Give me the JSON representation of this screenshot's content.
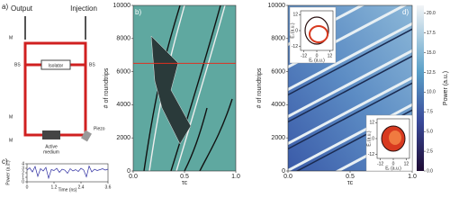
{
  "panel_a": {
    "label": "a)",
    "output": "Output",
    "injection": "Injection",
    "bs_left": "BS",
    "bs_right": "BS",
    "isolator": "Isolator",
    "mirror_top": "M",
    "mirror_left": "M",
    "mirror_bottom": "M",
    "active_medium": [
      "Active",
      "medium"
    ],
    "piezo": "Piezo"
  },
  "chart_data": [
    {
      "type": "line",
      "label": "c)",
      "y_label": "Power (a.u.)",
      "x_label": "Time (ns)",
      "x": [
        0,
        0.12,
        0.24,
        0.36,
        0.48,
        0.6,
        0.72,
        0.84,
        0.96,
        1.08,
        1.2,
        1.32,
        1.44,
        1.56,
        1.68,
        1.8,
        1.92,
        2.04,
        2.16,
        2.28,
        2.4,
        2.52,
        2.64,
        2.76,
        2.88,
        3.0,
        3.12,
        3.24,
        3.36,
        3.48,
        3.6
      ],
      "values": [
        2.6,
        3.1,
        2.2,
        3.4,
        1.2,
        2.9,
        2.4,
        3.2,
        0.8,
        2.7,
        2.5,
        3.0,
        2.1,
        2.8,
        2.6,
        1.9,
        2.9,
        2.4,
        2.7,
        2.3,
        3.0,
        2.6,
        1.1,
        3.5,
        2.2,
        2.8,
        2.5,
        2.7,
        2.9,
        2.6,
        2.8
      ],
      "color": "#2c2ca0",
      "xlim": [
        0,
        3.6
      ],
      "xticks": [
        0,
        1.2,
        2.4,
        3.6
      ],
      "ylim": [
        0,
        4
      ],
      "yticks": [
        0,
        1,
        2,
        3,
        4
      ]
    },
    {
      "type": "heatmap",
      "label": "b)",
      "y_label": "# of roundtrips",
      "x_label": "τc",
      "xlim": [
        0,
        1
      ],
      "xticks": [
        {
          "value": 0,
          "label": "0.0"
        },
        {
          "value": 0.5,
          "label": "0.5"
        },
        {
          "value": 1,
          "label": "1.0"
        }
      ],
      "ylim": [
        0,
        10000
      ],
      "yticks": [
        0,
        2000,
        4000,
        6000,
        8000,
        10000
      ],
      "hline": 6500,
      "hline_color": "#e03020"
    },
    {
      "type": "heatmap",
      "label": "d)",
      "y_label": "# of roundtrips",
      "x_label": "τc",
      "xlim": [
        0,
        1
      ],
      "xticks": [
        {
          "value": 0,
          "label": "0.0"
        },
        {
          "value": 0.5,
          "label": "0.5"
        },
        {
          "value": 1,
          "label": "1.0"
        }
      ],
      "ylim": [
        0,
        10000
      ],
      "yticks": [
        0,
        2000,
        4000,
        6000,
        8000,
        10000
      ],
      "colorbar": {
        "label": "Power (a.u.)",
        "lim": [
          0,
          21
        ],
        "ticks": [
          {
            "value": 0,
            "label": "0.0"
          },
          {
            "value": 2.5,
            "label": "2.5"
          },
          {
            "value": 5,
            "label": "5.0"
          },
          {
            "value": 7.5,
            "label": "7.5"
          },
          {
            "value": 10,
            "label": "10.0"
          },
          {
            "value": 12.5,
            "label": "12.5"
          },
          {
            "value": 15,
            "label": "15.0"
          },
          {
            "value": 17.5,
            "label": "17.5"
          },
          {
            "value": 20,
            "label": "20.0"
          }
        ]
      },
      "insets": [
        {
          "x_label": "Eᵣ (a.u.)",
          "y_label": "Eᵢ (a.u.)",
          "xlim": [
            -15,
            15
          ],
          "xticks": [
            -12,
            0,
            12
          ],
          "ylim": [
            -15,
            15
          ],
          "yticks": [
            -12,
            0,
            12
          ]
        },
        {
          "x_label": "Eᵣ (a.u.)",
          "y_label": "Eᵢ (a.u.)",
          "xlim": [
            -15,
            15
          ],
          "xticks": [
            -12,
            0,
            12
          ],
          "ylim": [
            -15,
            15
          ],
          "yticks": [
            -12,
            0,
            12
          ]
        }
      ]
    }
  ]
}
